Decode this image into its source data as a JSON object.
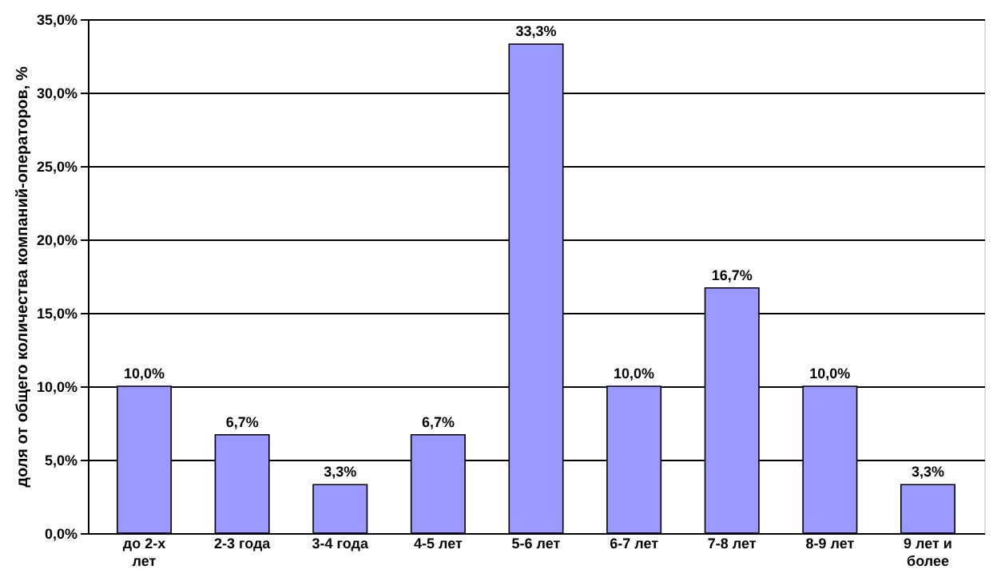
{
  "chart_data": {
    "type": "bar",
    "ylabel": "доля от общего количества компаний-операторов, %",
    "categories": [
      "до 2-х лет",
      "2-3 года",
      "3-4 года",
      "4-5 лет",
      "5-6 лет",
      "6-7 лет",
      "7-8 лет",
      "8-9 лет",
      "9 лет и более"
    ],
    "values": [
      10.0,
      6.7,
      3.3,
      6.7,
      33.3,
      10.0,
      16.7,
      10.0,
      3.3
    ],
    "value_labels": [
      "10,0%",
      "6,7%",
      "3,3%",
      "6,7%",
      "33,3%",
      "10,0%",
      "16,7%",
      "10,0%",
      "3,3%"
    ],
    "color": "#9999ff",
    "ylim": [
      0,
      35
    ],
    "yticks": [
      {
        "value": 0,
        "label": "0,0%"
      },
      {
        "value": 5,
        "label": "5,0%"
      },
      {
        "value": 10,
        "label": "10,0%"
      },
      {
        "value": 15,
        "label": "15,0%"
      },
      {
        "value": 20,
        "label": "20,0%"
      },
      {
        "value": 25,
        "label": "25,0%"
      },
      {
        "value": 30,
        "label": "30,0%"
      },
      {
        "value": 35,
        "label": "35,0%"
      }
    ],
    "grid": "y"
  }
}
